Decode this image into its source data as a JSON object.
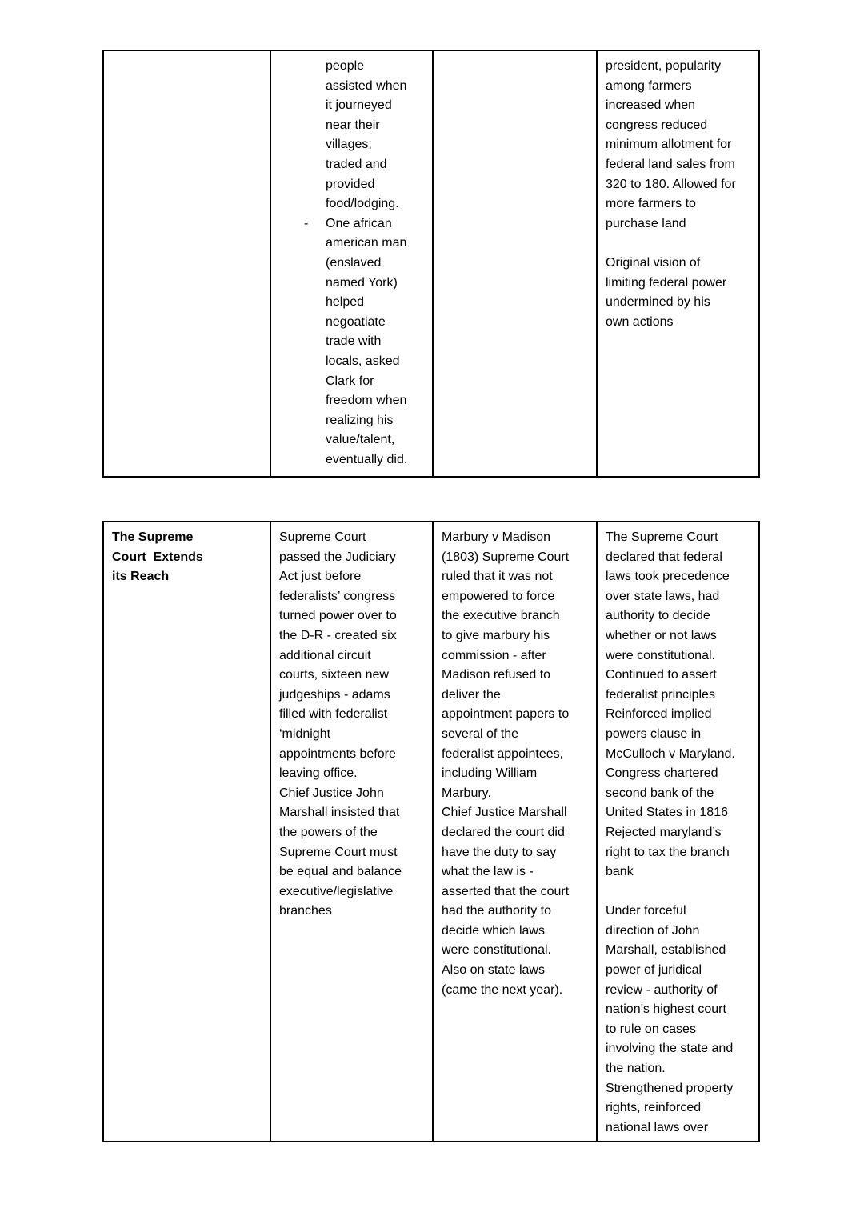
{
  "document": {
    "background": "#ffffff",
    "text_color": "#000000",
    "border_color": "#000000",
    "list_marker": "-"
  },
  "table1": {
    "col2_list": {
      "item1_lines": [
        "people",
        "assisted when",
        "it journeyed",
        "near their",
        "villages;",
        "traded and",
        "provided",
        "food/lodging."
      ],
      "item2_marker": "-",
      "item2_lines": [
        "One african",
        "american man",
        "(enslaved",
        "named York)",
        "helped",
        "negoatiate",
        "trade with",
        "locals, asked",
        "Clark for",
        "freedom when",
        "realizing his",
        "value/talent,",
        "eventually did."
      ]
    },
    "col4_lines": [
      "president, popularity",
      "among farmers",
      "increased when",
      "congress reduced",
      "minimum allotment for",
      "federal land sales from",
      "320 to 180. Allowed for",
      "more farmers to",
      "purchase land",
      "",
      "Original vision of",
      "limiting federal power",
      "undermined by his",
      "own actions"
    ]
  },
  "table2": {
    "header_lines": [
      "The Supreme",
      "Court  Extends",
      "its Reach"
    ],
    "col2_lines": [
      "Supreme Court",
      "passed the Judiciary",
      "Act just before",
      "federalists’ congress",
      "turned power over to",
      "the D-R - created six",
      "additional circuit",
      "courts, sixteen new",
      "judgeships - adams",
      "filled with federalist",
      "‘midnight",
      "appointments before",
      "leaving office.",
      "Chief Justice John",
      "Marshall insisted that",
      "the powers of the",
      "Supreme Court must",
      "be equal and balance",
      "executive/legislative",
      "branches"
    ],
    "col3_lines": [
      "Marbury v Madison",
      "(1803) Supreme Court",
      "ruled that it was not",
      "empowered to force",
      "the executive branch",
      "to give marbury his",
      "commission - after",
      "Madison refused to",
      "deliver the",
      "appointment papers to",
      "several of the",
      "federalist appointees,",
      "including William",
      "Marbury.",
      "Chief Justice Marshall",
      "declared the court did",
      "have the duty to say",
      "what the law is -",
      "asserted that the court",
      "had the authority to",
      "decide which laws",
      "were constitutional.",
      "Also on state laws",
      "(came the next year)."
    ],
    "col4_lines": [
      "The Supreme Court",
      "declared that federal",
      "laws took precedence",
      "over state laws, had",
      "authority to decide",
      "whether or not laws",
      "were constitutional.",
      "Continued to assert",
      "federalist principles",
      "Reinforced implied",
      "powers clause in",
      "McCulloch v Maryland.",
      "Congress chartered",
      "second bank of the",
      "United States in 1816",
      "Rejected maryland’s",
      "right to tax the branch",
      "bank",
      "",
      "Under forceful",
      "direction of John",
      "Marshall, established",
      "power of juridical",
      "review - authority of",
      "nation’s highest court",
      "to rule on cases",
      "involving the state and",
      "the nation.",
      "Strengthened property",
      "rights, reinforced",
      "national laws over"
    ]
  }
}
